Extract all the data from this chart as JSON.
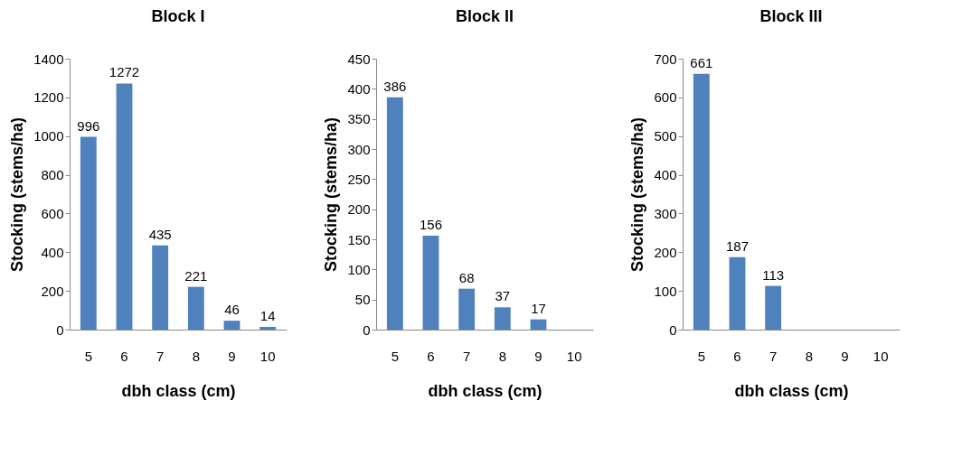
{
  "chart_data": [
    {
      "type": "bar",
      "title": "Block I",
      "xlabel": "dbh class (cm)",
      "ylabel": "Stocking (stems/ha)",
      "categories": [
        "5",
        "6",
        "7",
        "8",
        "9",
        "10"
      ],
      "values": [
        996,
        1272,
        435,
        221,
        46,
        14
      ],
      "color": "#4f81bd",
      "ylim": [
        0,
        1400
      ],
      "yticks": [
        0,
        200,
        400,
        600,
        800,
        1000,
        1200,
        1400
      ],
      "data_labels": true,
      "grid": false
    },
    {
      "type": "bar",
      "title": "Block II",
      "xlabel": "dbh class (cm)",
      "ylabel": "Stocking (stems/ha)",
      "categories": [
        "5",
        "6",
        "7",
        "8",
        "9",
        "10"
      ],
      "values": [
        386,
        156,
        68,
        37,
        17,
        null
      ],
      "color": "#4f81bd",
      "ylim": [
        0,
        450
      ],
      "yticks": [
        0,
        50,
        100,
        150,
        200,
        250,
        300,
        350,
        400,
        450
      ],
      "data_labels": true,
      "grid": false
    },
    {
      "type": "bar",
      "title": "Block III",
      "xlabel": "dbh class (cm)",
      "ylabel": "Stocking (stems/ha)",
      "categories": [
        "5",
        "6",
        "7",
        "8",
        "9",
        "10"
      ],
      "values": [
        661,
        187,
        113,
        null,
        null,
        null
      ],
      "color": "#4f81bd",
      "ylim": [
        0,
        700
      ],
      "yticks": [
        0,
        100,
        200,
        300,
        400,
        500,
        600,
        700
      ],
      "data_labels": true,
      "grid": false
    }
  ]
}
